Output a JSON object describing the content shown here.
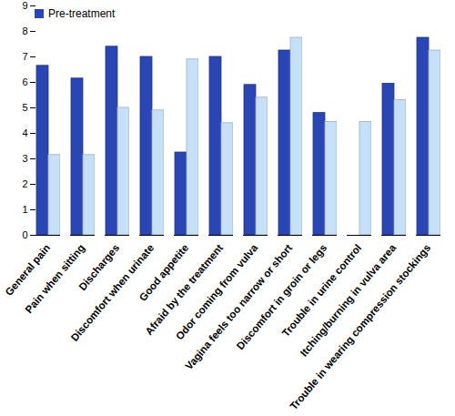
{
  "chart_data": {
    "type": "bar",
    "categories": [
      "General pain",
      "Pain when sitting",
      "Discharges",
      "Discomfort when urinate",
      "Good appetite",
      "Afraid by the treatment",
      "Odor coming from vulva",
      "Vagina feels too narrow or short",
      "Discomfort in groin or legs",
      "Trouble in urine control",
      "Itching/burning in vulva area",
      "Trouble in wearing compression stockings"
    ],
    "series": [
      {
        "name": "Pre-treatment",
        "color": "#2a45b4",
        "values": [
          6.65,
          6.15,
          7.4,
          7.0,
          3.25,
          7.0,
          5.9,
          7.25,
          4.8,
          null,
          5.95,
          7.75
        ]
      },
      {
        "name": null,
        "color": "#c6e0f7",
        "values": [
          3.15,
          3.15,
          5.0,
          4.9,
          6.9,
          4.4,
          5.4,
          7.75,
          4.45,
          4.45,
          5.3,
          7.25
        ]
      }
    ],
    "ylim": [
      0,
      9
    ],
    "yticks": [
      0,
      1,
      2,
      3,
      4,
      5,
      6,
      7,
      8,
      9
    ],
    "grid": false,
    "legend": "top-left"
  }
}
